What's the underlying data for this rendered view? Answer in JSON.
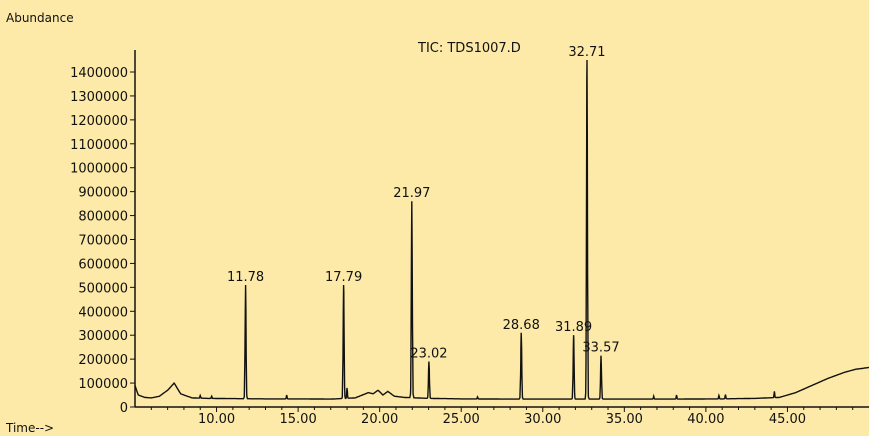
{
  "chart_data": {
    "type": "line",
    "title": "TIC: TDS1007.D",
    "ylabel": "Abundance",
    "xlabel": "Time-->",
    "xlim": [
      5.0,
      50.0
    ],
    "ylim": [
      0,
      1400000
    ],
    "x_ticks": [
      "10.00",
      "15.00",
      "20.00",
      "25.00",
      "30.00",
      "35.00",
      "40.00",
      "45.00"
    ],
    "x_tick_values": [
      10,
      15,
      20,
      25,
      30,
      35,
      40,
      45
    ],
    "y_ticks": [
      "0",
      "100000",
      "200000",
      "300000",
      "400000",
      "500000",
      "600000",
      "700000",
      "800000",
      "900000",
      "1000000",
      "1100000",
      "1200000",
      "1300000",
      "1400000"
    ],
    "y_tick_values": [
      0,
      100000,
      200000,
      300000,
      400000,
      500000,
      600000,
      700000,
      800000,
      900000,
      1000000,
      1100000,
      1200000,
      1300000,
      1400000
    ],
    "peaks": [
      {
        "x": 11.78,
        "label": "11.78",
        "y": 510000
      },
      {
        "x": 17.79,
        "label": "17.79",
        "y": 510000
      },
      {
        "x": 21.97,
        "label": "21.97",
        "y": 860000
      },
      {
        "x": 23.02,
        "label": "23.02",
        "y": 190000
      },
      {
        "x": 28.68,
        "label": "28.68",
        "y": 310000
      },
      {
        "x": 31.89,
        "label": "31.89",
        "y": 300000
      },
      {
        "x": 32.71,
        "label": "32.71",
        "y": 1450000
      },
      {
        "x": 33.57,
        "label": "33.57",
        "y": 215000
      }
    ],
    "baseline": {
      "x": [
        5.0,
        5.2,
        5.6,
        6.0,
        6.5,
        7.0,
        7.4,
        7.8,
        8.5,
        9.5,
        11.0,
        13.0,
        15.0,
        17.0,
        18.5,
        19.3,
        19.6,
        19.9,
        20.2,
        20.5,
        20.9,
        21.5,
        23.0,
        25.0,
        28.0,
        31.0,
        35.0,
        38.0,
        41.0,
        43.0,
        44.5,
        45.5,
        46.5,
        47.5,
        48.5,
        49.2,
        50.0
      ],
      "y": [
        90000,
        50000,
        40000,
        38000,
        45000,
        70000,
        100000,
        55000,
        38000,
        36000,
        35000,
        34000,
        34000,
        33000,
        38000,
        60000,
        55000,
        70000,
        50000,
        65000,
        45000,
        40000,
        36000,
        34000,
        33000,
        33000,
        33000,
        33000,
        34000,
        36000,
        40000,
        60000,
        90000,
        120000,
        145000,
        158000,
        165000
      ]
    },
    "minor_spikes": [
      {
        "x": 9.0,
        "y": 48000
      },
      {
        "x": 9.7,
        "y": 45000
      },
      {
        "x": 14.3,
        "y": 50000
      },
      {
        "x": 18.0,
        "y": 80000
      },
      {
        "x": 26.0,
        "y": 42000
      },
      {
        "x": 36.8,
        "y": 45000
      },
      {
        "x": 38.2,
        "y": 50000
      },
      {
        "x": 40.8,
        "y": 48000
      },
      {
        "x": 41.2,
        "y": 52000
      },
      {
        "x": 44.2,
        "y": 65000
      }
    ]
  }
}
